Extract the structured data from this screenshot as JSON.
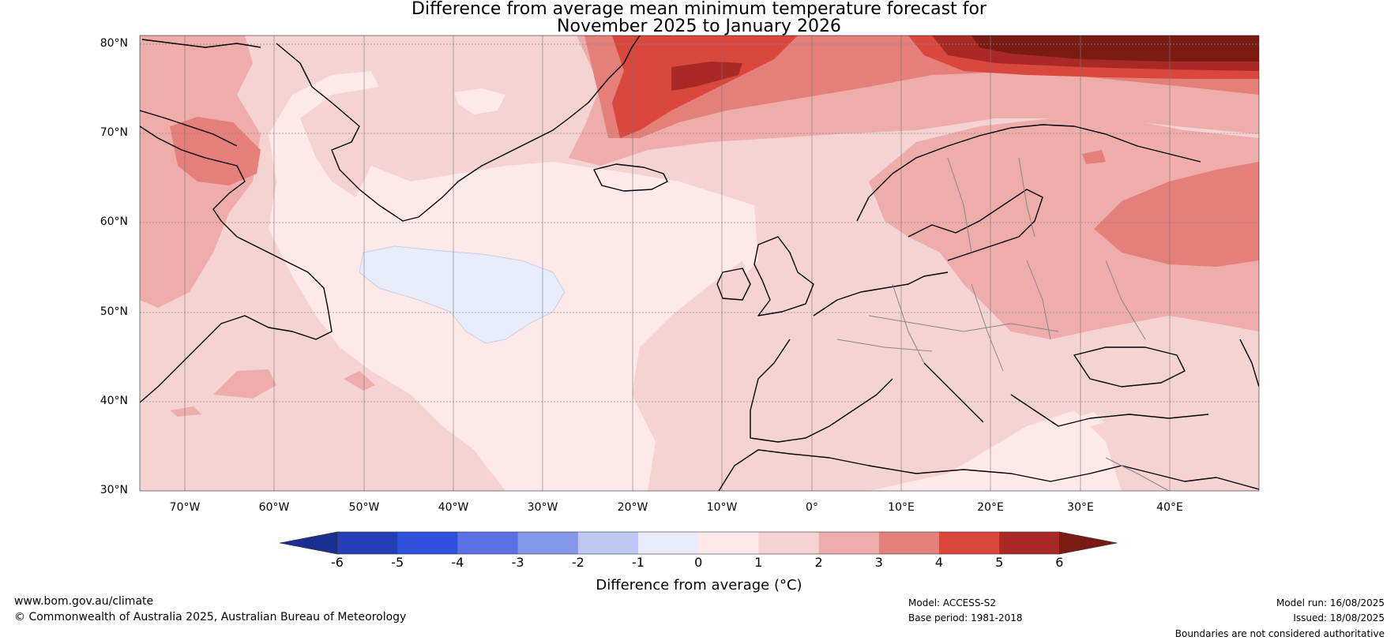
{
  "title": {
    "line1": "Difference from average mean minimum temperature forecast for",
    "line2": "November 2025 to January 2026"
  },
  "map": {
    "lat_labels": [
      "80°N",
      "70°N",
      "60°N",
      "50°N",
      "40°N",
      "30°N"
    ],
    "lon_labels": [
      "70°W",
      "60°W",
      "50°W",
      "40°W",
      "30°W",
      "20°W",
      "10°W",
      "0°",
      "10°E",
      "20°E",
      "30°E",
      "40°E"
    ],
    "extent": {
      "lon_min": -75,
      "lon_max": 50,
      "lat_min": 30,
      "lat_max": 81
    }
  },
  "colorbar": {
    "ticks": [
      "-6",
      "-5",
      "-4",
      "-3",
      "-2",
      "-1",
      "0",
      "1",
      "2",
      "3",
      "4",
      "5",
      "6"
    ],
    "colors": [
      "#1a2f8f",
      "#2440b5",
      "#3050dc",
      "#5a72e4",
      "#8497ea",
      "#bec8f4",
      "#e8ecfb",
      "#fce9e8",
      "#f5d3d2",
      "#eeadab",
      "#e57f79",
      "#d9473d",
      "#a92a24",
      "#7a1b14"
    ],
    "label": "Difference from average (°C)"
  },
  "footer": {
    "site": "www.bom.gov.au/climate",
    "copyright": "© Commonwealth of Australia 2025, Australian Bureau of Meteorology",
    "model": "Model: ACCESS-S2",
    "base_period": "Base period: 1981-2018",
    "model_run": "Model run: 16/08/2025",
    "issued": "Issued: 18/08/2025",
    "disclaimer": "Boundaries are not considered authoritative"
  }
}
